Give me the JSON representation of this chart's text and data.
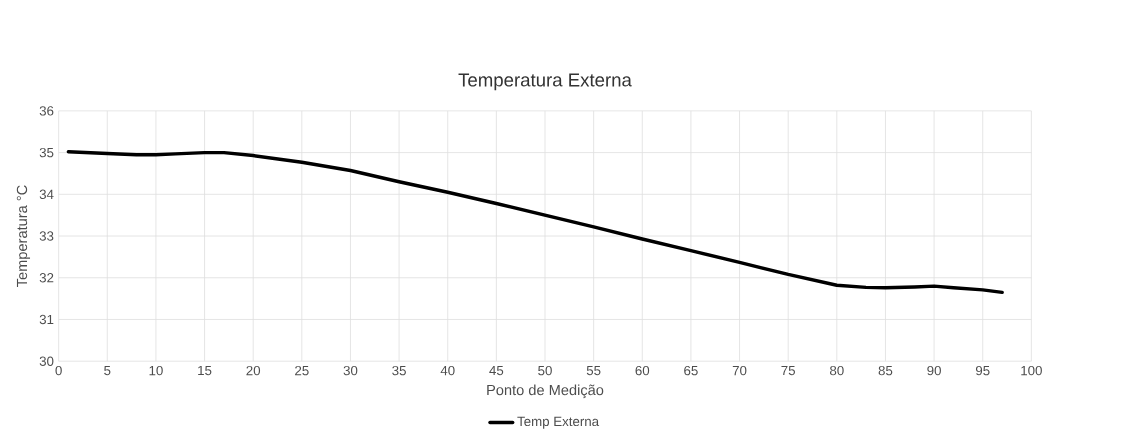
{
  "chart_data": {
    "type": "line",
    "title": "Temperatura  Externa",
    "xlabel": "Ponto de Medição",
    "ylabel": "Temperatura °C",
    "xlim": [
      0,
      100
    ],
    "xticks": [
      0,
      5,
      10,
      15,
      20,
      25,
      30,
      35,
      40,
      45,
      50,
      55,
      60,
      65,
      70,
      75,
      80,
      85,
      90,
      95,
      100
    ],
    "ylim": [
      30,
      36
    ],
    "yticks": [
      30,
      31,
      32,
      33,
      34,
      35,
      36
    ],
    "grid": true,
    "legend": "bottom",
    "marker": "none",
    "line_style": "solid",
    "series": [
      {
        "name": "Temp Externa",
        "color": "#000000",
        "x": [
          1,
          5,
          8,
          10,
          12,
          15,
          17,
          20,
          25,
          30,
          35,
          40,
          45,
          50,
          55,
          60,
          65,
          70,
          75,
          80,
          83,
          85,
          88,
          90,
          92,
          95,
          97
        ],
        "values": [
          35.02,
          34.98,
          34.95,
          34.95,
          34.97,
          35.0,
          35.0,
          34.93,
          34.77,
          34.57,
          34.3,
          34.05,
          33.78,
          33.5,
          33.22,
          32.93,
          32.65,
          32.37,
          32.08,
          31.82,
          31.77,
          31.76,
          31.78,
          31.8,
          31.76,
          31.71,
          31.65
        ]
      }
    ]
  }
}
